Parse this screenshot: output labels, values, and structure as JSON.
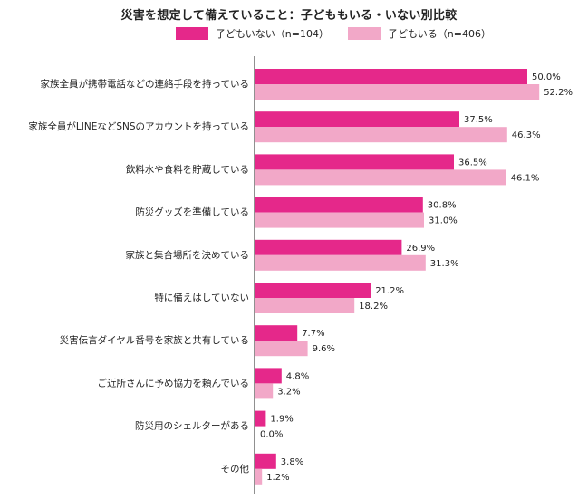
{
  "chart_data": {
    "type": "bar",
    "orientation": "horizontal",
    "title": "災害を想定して備えていること：子どももいる・いない別比較",
    "categories": [
      "家族全員が携帯電話などの連絡手段を持っている",
      "家族全員がLINEなどSNSのアカウントを持っている",
      "飲料水や食料を貯蔵している",
      "防災グッズを準備している",
      "家族と集合場所を決めている",
      "特に備えはしていない",
      "災害伝言ダイヤル番号を家族と共有している",
      "ご近所さんに予め協力を頼んでいる",
      "防災用のシェルターがある",
      "その他"
    ],
    "series": [
      {
        "name": "子どもいない（n=104）",
        "color": "#e5288a",
        "values": [
          50.0,
          37.5,
          36.5,
          30.8,
          26.9,
          21.2,
          7.7,
          4.8,
          1.9,
          3.8
        ],
        "labels": [
          "50.0%",
          "37.5%",
          "36.5%",
          "30.8%",
          "26.9%",
          "21.2%",
          "7.7%",
          "4.8%",
          "1.9%",
          "3.8%"
        ]
      },
      {
        "name": "子どもいる（n=406）",
        "color": "#f2a8c8",
        "values": [
          52.2,
          46.3,
          46.1,
          31.0,
          31.3,
          18.2,
          9.6,
          3.2,
          0.0,
          1.2
        ],
        "labels": [
          "52.2%",
          "46.3%",
          "46.1%",
          "31.0%",
          "31.3%",
          "18.2%",
          "9.6%",
          "3.2%",
          "0.0%",
          "1.2%"
        ]
      }
    ],
    "xlim": [
      0,
      60
    ],
    "legend_position": "top",
    "grid": false
  }
}
